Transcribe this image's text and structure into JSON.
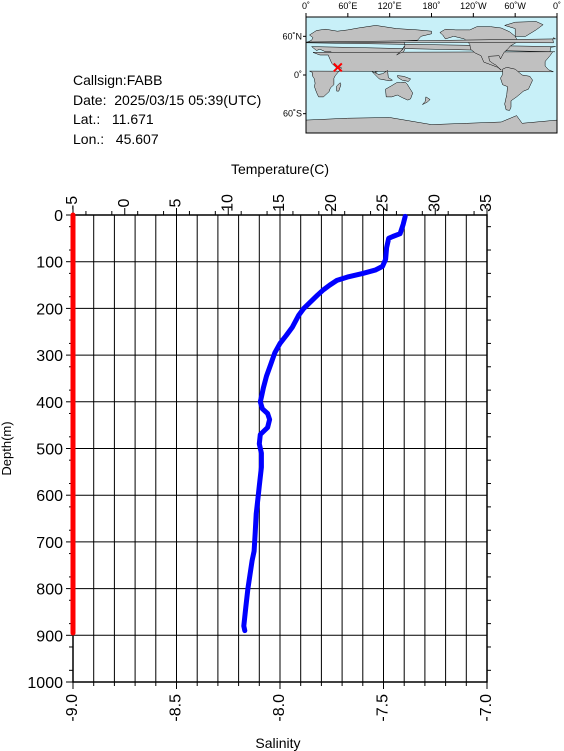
{
  "info": {
    "callsign": "Callsign:FABB",
    "date": "Date:  2025/03/15 05:39(UTC)",
    "lat": "Lat.:   11.671",
    "lon": "Lon.:   45.607"
  },
  "map": {
    "top_labels": [
      "0˚",
      "60˚E",
      "120˚E",
      "180˚",
      "120˚W",
      "60˚W",
      "0˚"
    ],
    "lat_labels": [
      "60˚N",
      "0˚",
      "60˚S"
    ],
    "ocean_color": "#c8f0f8",
    "land_color": "#c0c0c0",
    "marker_color": "#ff0000",
    "marker": {
      "lon": 45.607,
      "lat": 11.671
    }
  },
  "chart_data": {
    "type": "line",
    "top_axis": {
      "label": "Temperature(C)",
      "ticks": [
        "-5",
        "0",
        "5",
        "10",
        "15",
        "20",
        "25",
        "30",
        "35"
      ],
      "range": [
        -5,
        35
      ]
    },
    "bottom_axis": {
      "label": "Salinity",
      "ticks": [
        "-9.0",
        "-8.5",
        "-8.0",
        "-7.5",
        "-7.0"
      ],
      "range": [
        -9.0,
        -7.0
      ]
    },
    "y_axis": {
      "label": "Depth(m)",
      "ticks": [
        "0",
        "100",
        "200",
        "300",
        "400",
        "500",
        "600",
        "700",
        "800",
        "900",
        "1000"
      ],
      "range": [
        0,
        1000
      ],
      "inverted": true
    },
    "grid": true,
    "series": [
      {
        "axis": "temperature",
        "color": "#0000ff",
        "points": [
          [
            27.1,
            3
          ],
          [
            26.9,
            20
          ],
          [
            26.6,
            40
          ],
          [
            25.9,
            46
          ],
          [
            25.5,
            50
          ],
          [
            25.3,
            70
          ],
          [
            25.2,
            95
          ],
          [
            24.9,
            110
          ],
          [
            24.2,
            118
          ],
          [
            23.0,
            125
          ],
          [
            21.5,
            133
          ],
          [
            20.5,
            140
          ],
          [
            19.8,
            150
          ],
          [
            19.2,
            160
          ],
          [
            18.6,
            172
          ],
          [
            18.0,
            185
          ],
          [
            17.3,
            200
          ],
          [
            16.8,
            215
          ],
          [
            16.2,
            240
          ],
          [
            15.6,
            258
          ],
          [
            15.0,
            275
          ],
          [
            14.5,
            295
          ],
          [
            14.1,
            320
          ],
          [
            13.7,
            345
          ],
          [
            13.4,
            370
          ],
          [
            13.2,
            390
          ],
          [
            13.1,
            400
          ],
          [
            13.3,
            415
          ],
          [
            13.8,
            425
          ],
          [
            14.0,
            438
          ],
          [
            13.8,
            455
          ],
          [
            13.1,
            470
          ],
          [
            13.0,
            490
          ],
          [
            13.2,
            510
          ],
          [
            13.2,
            540
          ],
          [
            13.0,
            580
          ],
          [
            12.9,
            600
          ],
          [
            12.7,
            640
          ],
          [
            12.6,
            680
          ],
          [
            12.5,
            720
          ],
          [
            12.3,
            740
          ],
          [
            12.1,
            770
          ],
          [
            11.9,
            800
          ],
          [
            11.7,
            840
          ],
          [
            11.6,
            860
          ],
          [
            11.5,
            880
          ],
          [
            11.6,
            890
          ]
        ]
      },
      {
        "axis": "salinity",
        "color": "#ff0000",
        "points": [
          [
            -9.0,
            0
          ],
          [
            -9.0,
            895
          ]
        ]
      }
    ]
  }
}
